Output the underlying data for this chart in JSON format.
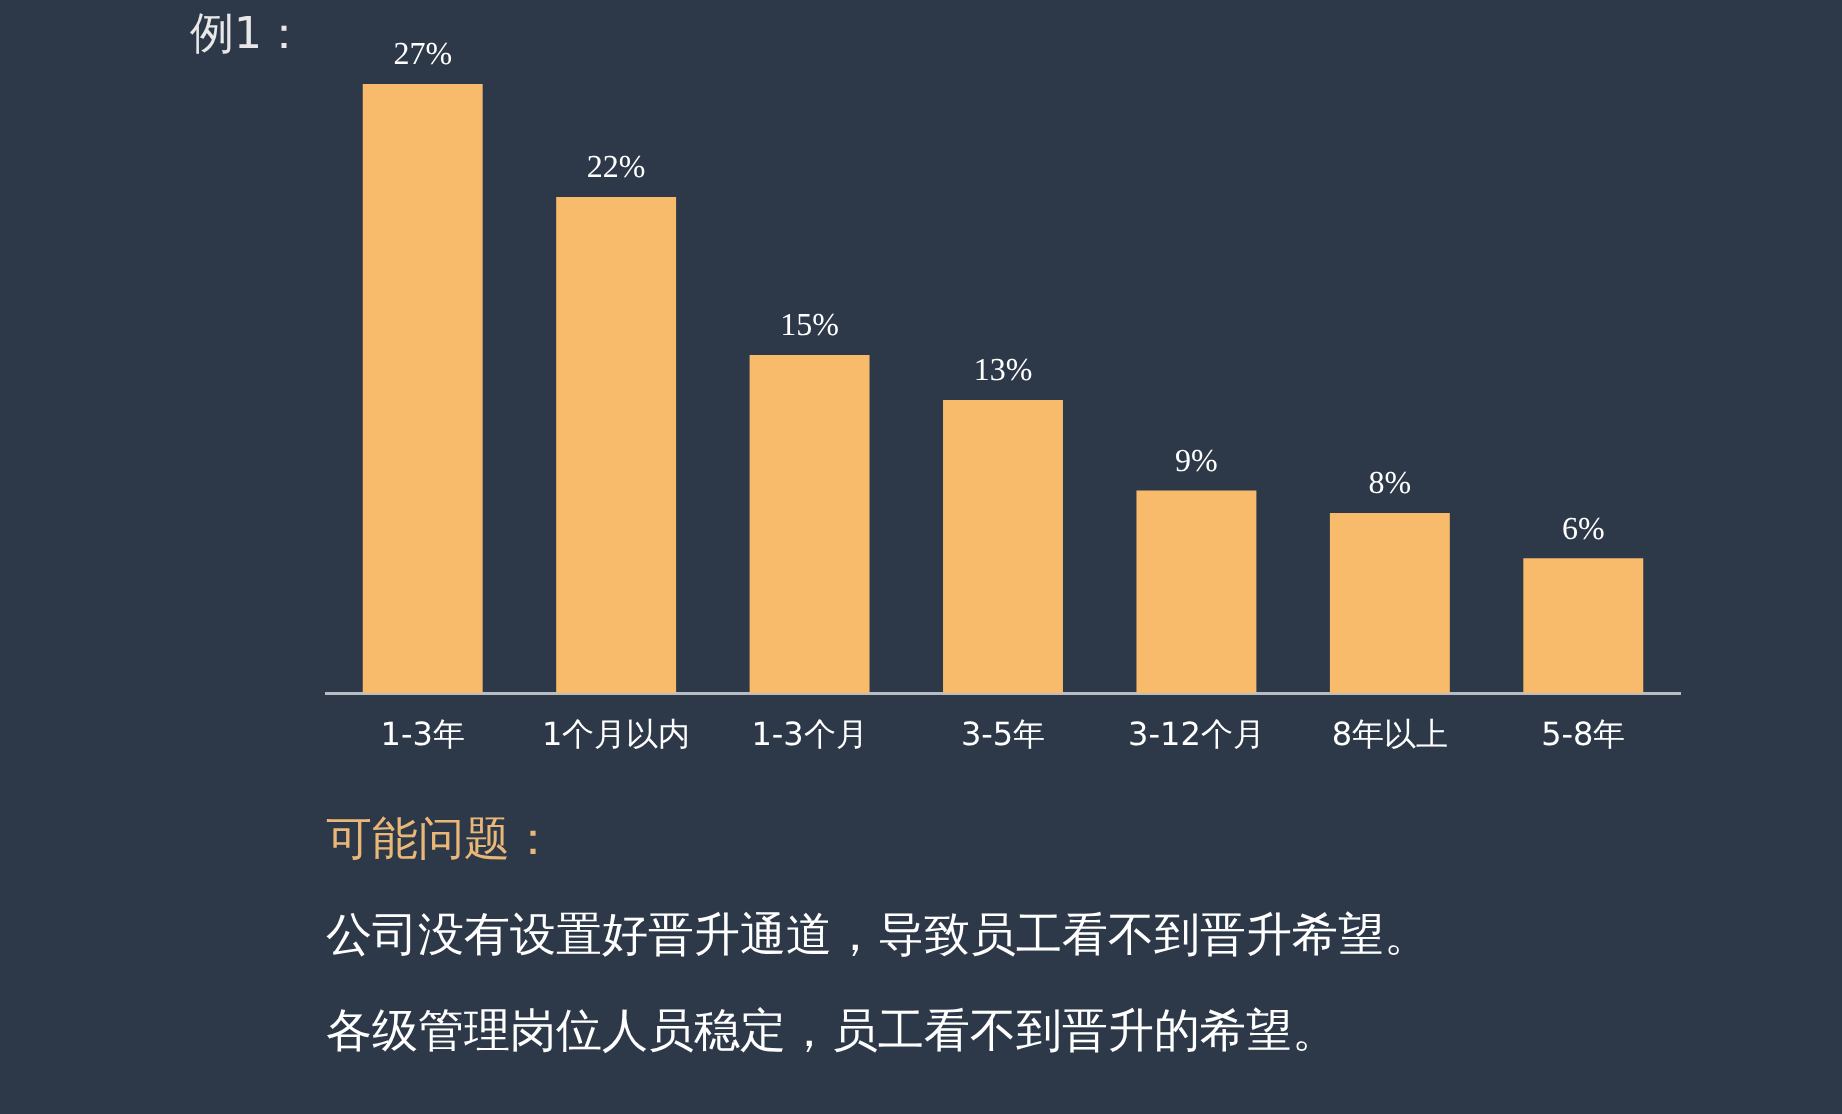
{
  "chart_data": {
    "type": "bar",
    "title": "例1：",
    "categories": [
      "1-3年",
      "1个月以内",
      "1-3个月",
      "3-5年",
      "3-12个月",
      "8年以上",
      "5-8年"
    ],
    "values": [
      27,
      22,
      15,
      13,
      9,
      8,
      6
    ],
    "value_labels": [
      "27%",
      "22%",
      "15%",
      "13%",
      "9%",
      "8%",
      "6%"
    ],
    "color": "#f8bb6b",
    "annotations": [
      "可能问题：",
      "公司没有设置好晋升通道，导致员工看不到晋升希望。",
      "各级管理岗位人员稳定，员工看不到晋升的希望。"
    ]
  }
}
